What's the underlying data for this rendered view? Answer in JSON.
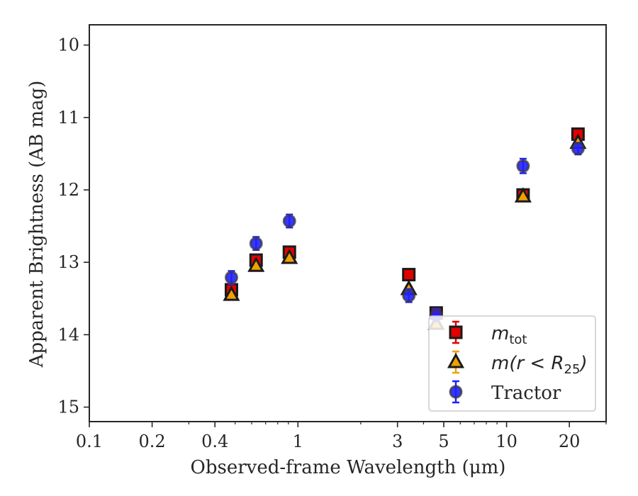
{
  "chart_data": {
    "type": "scatter",
    "xlabel": "Observed-frame Wavelength (μm)",
    "ylabel": "Apparent Brightness (AB mag)",
    "xscale": "log",
    "xlim": [
      0.1,
      30
    ],
    "ylim": [
      15.2,
      9.72
    ],
    "y_inverted": true,
    "x_ticks": [
      0.1,
      0.2,
      0.4,
      1,
      3,
      5,
      10,
      20
    ],
    "x_tick_labels": [
      "0.1",
      "0.2",
      "0.4",
      "1",
      "3",
      "5",
      "10",
      "20"
    ],
    "y_ticks": [
      10,
      11,
      12,
      13,
      14,
      15
    ],
    "y_tick_labels": [
      "10",
      "11",
      "12",
      "13",
      "14",
      "15"
    ],
    "legend_position": "lower-right",
    "series": [
      {
        "name": "m_tot",
        "marker": "square",
        "color": "#e00000",
        "x": [
          0.48,
          0.63,
          0.91,
          3.4,
          4.6,
          12.0,
          22.0
        ],
        "y": [
          13.38,
          12.97,
          12.86,
          13.17,
          13.7,
          12.07,
          11.23
        ],
        "yerr": [
          0.05,
          0.05,
          0.05,
          0.05,
          0.05,
          0.05,
          0.05
        ]
      },
      {
        "name": "m(r<R_25)",
        "marker": "triangle",
        "color": "#f0a000",
        "x": [
          0.48,
          0.63,
          0.91,
          3.4,
          4.6,
          12.0,
          22.0
        ],
        "y": [
          13.45,
          13.05,
          12.94,
          13.37,
          13.85,
          12.09,
          11.35
        ],
        "yerr": [
          0.04,
          0.04,
          0.04,
          0.04,
          0.04,
          0.04,
          0.04
        ]
      },
      {
        "name": "Tractor",
        "marker": "circle",
        "color": "#2020ff",
        "x": [
          0.48,
          0.63,
          0.91,
          3.4,
          4.6,
          12.0,
          22.0
        ],
        "y": [
          13.21,
          12.74,
          12.43,
          13.46,
          13.73,
          11.67,
          11.43
        ],
        "yerr": [
          0.09,
          0.09,
          0.09,
          0.09,
          0.09,
          0.1,
          0.08
        ]
      }
    ],
    "legend": {
      "m_tot_base": "m",
      "m_tot_sub": "tot",
      "m_r_base": "m(r < R",
      "m_r_sub": "25",
      "m_r_end": ")",
      "tractor": "Tractor"
    }
  }
}
